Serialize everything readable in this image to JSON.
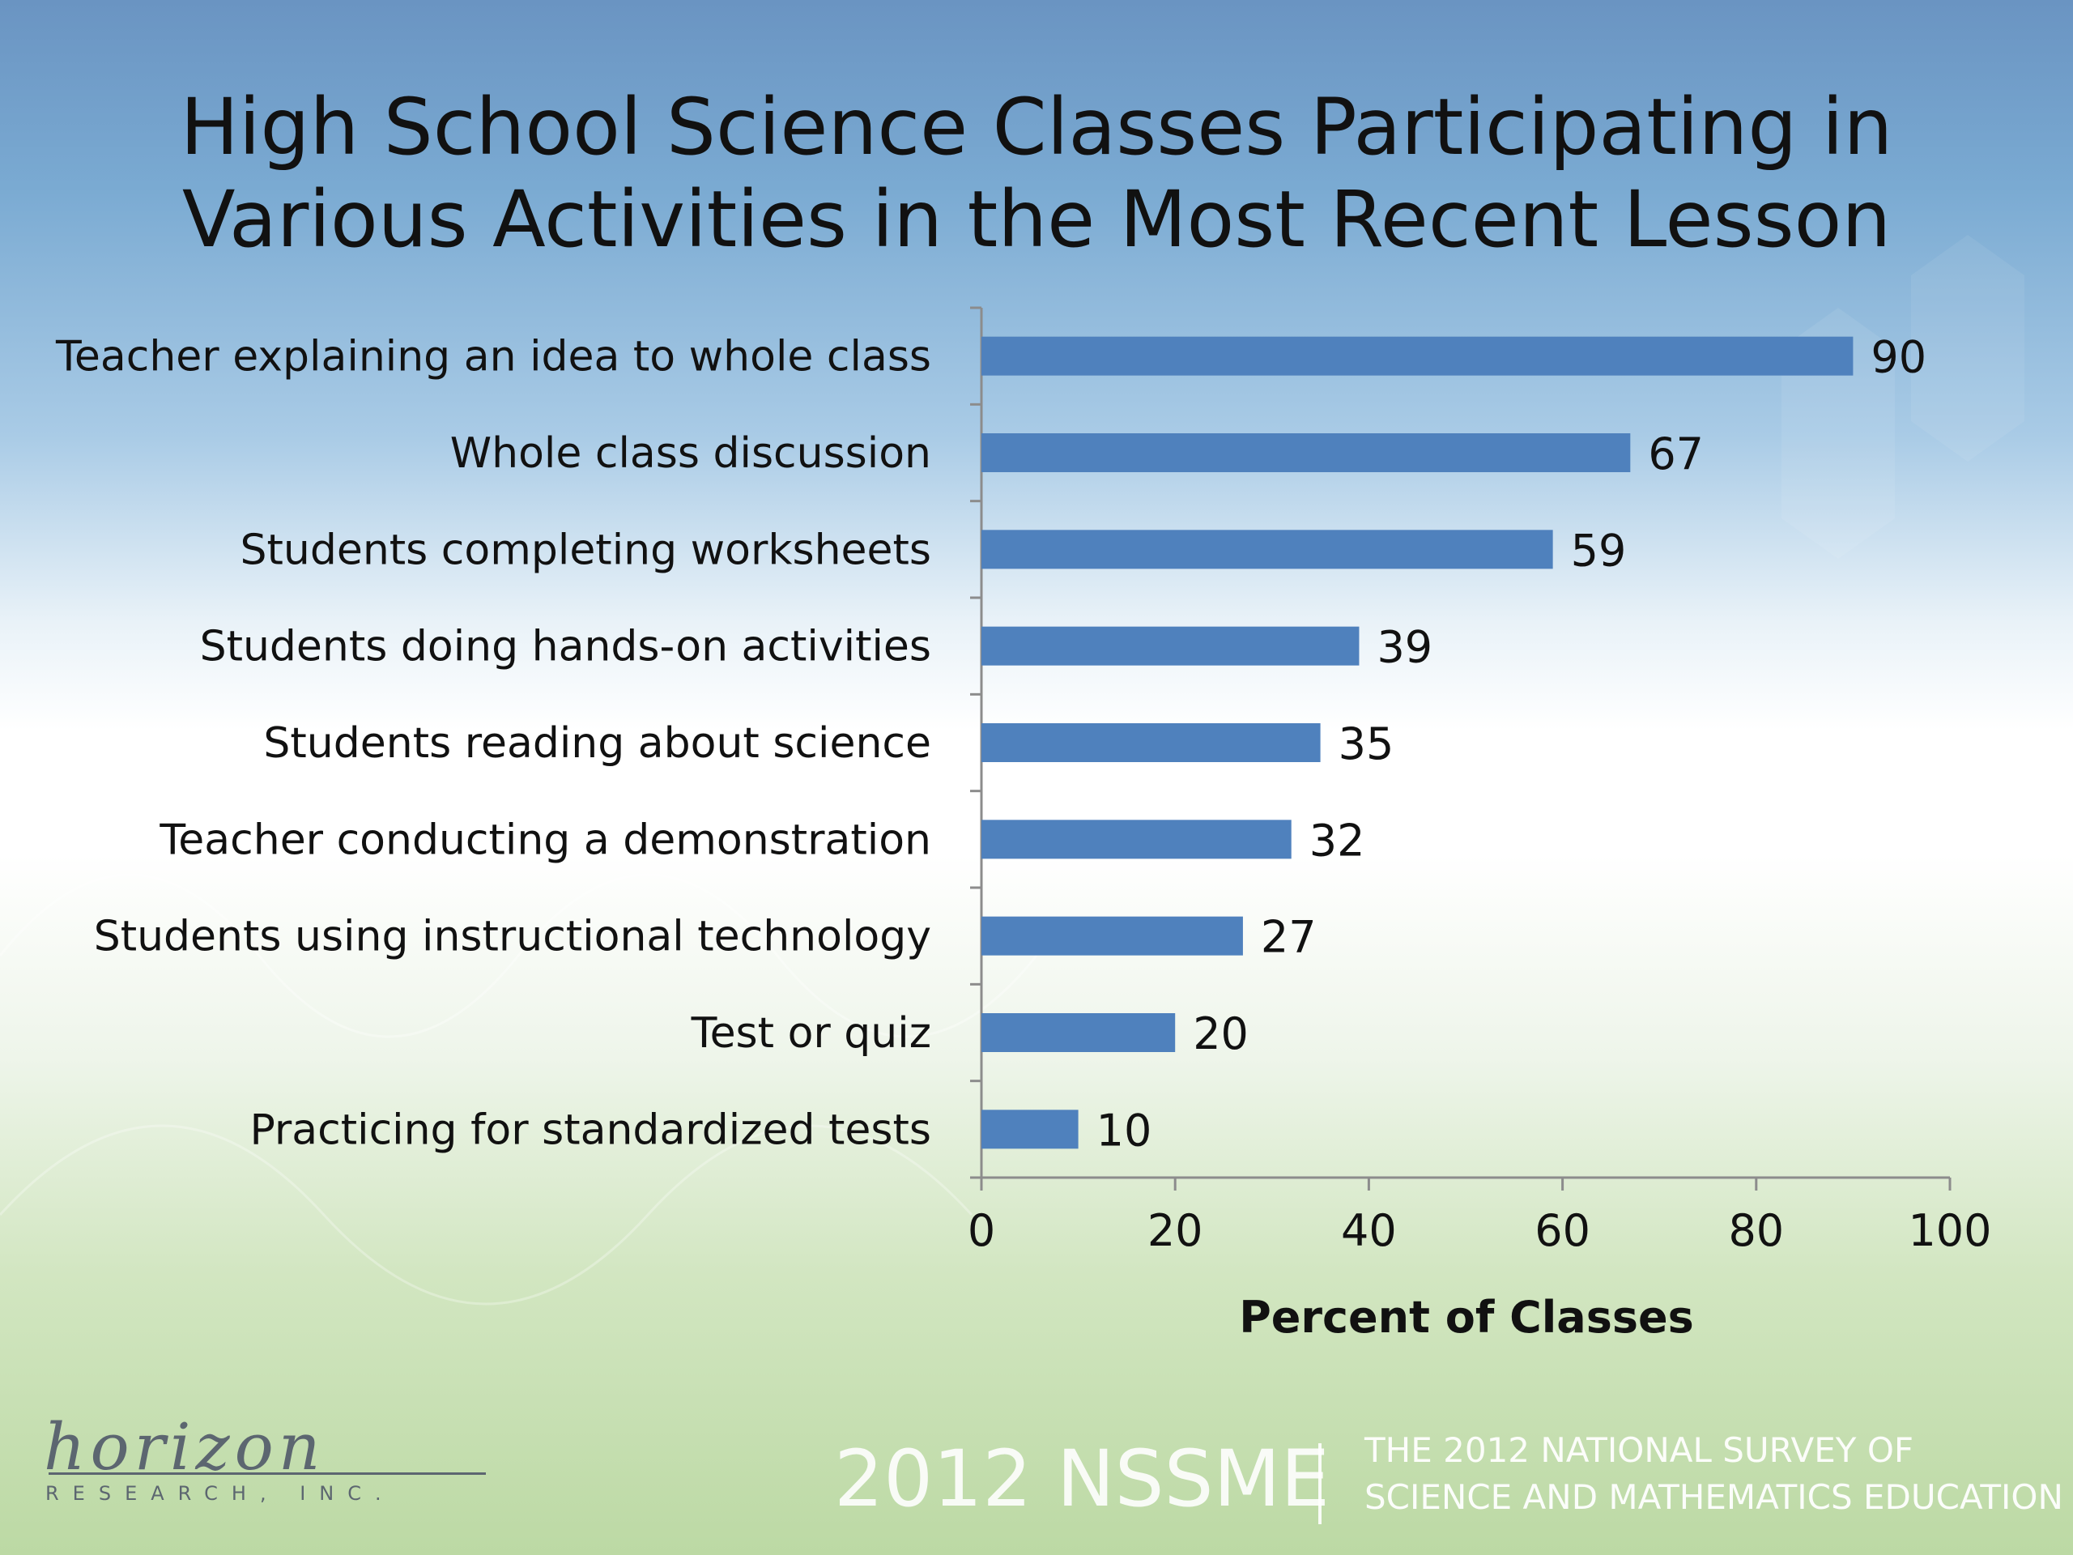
{
  "colors": {
    "bar": "#4f81bd",
    "axis": "#8c8c8c",
    "text": "#111111"
  },
  "chart_data": {
    "type": "bar",
    "orientation": "horizontal",
    "title_lines": [
      "High School Science Classes Participating in",
      "Various Activities in the Most Recent Lesson"
    ],
    "categories": [
      "Teacher explaining an idea to whole class",
      "Whole class discussion",
      "Students completing worksheets",
      "Students doing hands-on activities",
      "Students reading about science",
      "Teacher conducting a demonstration",
      "Students using instructional technology",
      "Test or quiz",
      "Practicing for standardized tests"
    ],
    "values": [
      90,
      67,
      59,
      39,
      35,
      32,
      27,
      20,
      10
    ],
    "xlabel": "Percent of Classes",
    "ylabel": "",
    "xlim": [
      0,
      100
    ],
    "xticks": [
      0,
      20,
      40,
      60,
      80,
      100
    ],
    "grid": false,
    "legend": "none"
  },
  "logo": {
    "script": "horizon",
    "sub": "RESEARCH, INC."
  },
  "footer": {
    "survey": "2012 NSSME",
    "line1": "THE 2012 NATIONAL SURVEY OF",
    "line2": "SCIENCE AND MATHEMATICS EDUCATION"
  }
}
